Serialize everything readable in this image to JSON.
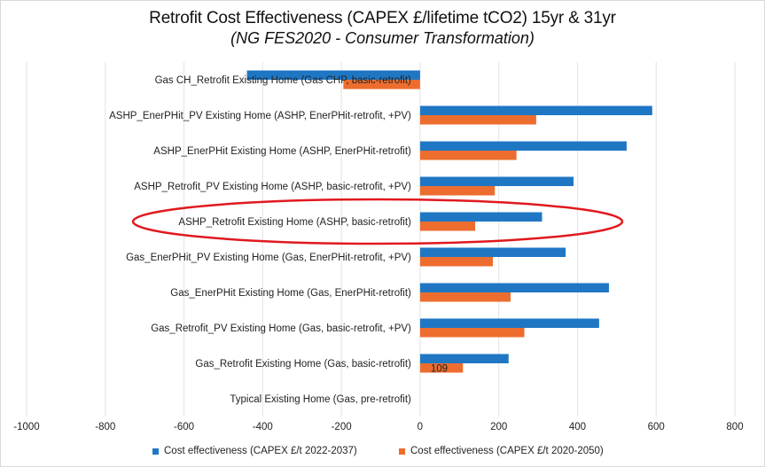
{
  "chart_data": {
    "type": "bar",
    "orientation": "horizontal",
    "title": "Retrofit Cost Effectiveness (CAPEX £/lifetime tCO2) 15yr  & 31yr",
    "subtitle": "(NG FES2020 - Consumer Transformation)",
    "xlabel": "",
    "ylabel": "",
    "xlim": [
      -1000,
      800
    ],
    "xticks": [
      -1000,
      -800,
      -600,
      -400,
      -200,
      0,
      200,
      400,
      600,
      800
    ],
    "grid": "vertical",
    "legend_position": "bottom",
    "categories": [
      "Gas CH_Retrofit Existing Home (Gas CHP, basic-retrofit)",
      "ASHP_EnerPHit_PV  Existing Home (ASHP, EnerPHit-retrofit, +PV)",
      "ASHP_EnerPHit  Existing Home (ASHP, EnerPHit-retrofit)",
      "ASHP_Retrofit_PV Existing Home (ASHP, basic-retrofit, +PV)",
      "ASHP_Retrofit Existing Home (ASHP, basic-retrofit)",
      "Gas_EnerPHit_PV  Existing Home (Gas, EnerPHit-retrofit, +PV)",
      "Gas_EnerPHit  Existing Home (Gas, EnerPHit-retrofit)",
      "Gas_Retrofit_PV Existing Home (Gas, basic-retrofit, +PV)",
      "Gas_Retrofit Existing Home (Gas, basic-retrofit)",
      "Typical Existing Home (Gas, pre-retrofit)"
    ],
    "series": [
      {
        "name": "Cost effectiveness (CAPEX £/t 2022-2037)",
        "color": "#1f77c4",
        "values": [
          -440,
          590,
          525,
          390,
          310,
          370,
          480,
          455,
          225,
          0
        ]
      },
      {
        "name": "Cost effectiveness (CAPEX £/t 2020-2050)",
        "color": "#ed6d2f",
        "values": [
          -195,
          295,
          245,
          190,
          140,
          185,
          230,
          265,
          109,
          0
        ]
      }
    ],
    "data_labels": [
      {
        "series": 1,
        "category": 8,
        "text": "109"
      }
    ],
    "annotation": {
      "type": "ellipse",
      "color": "#e0191e",
      "highlights_category": 4
    }
  }
}
